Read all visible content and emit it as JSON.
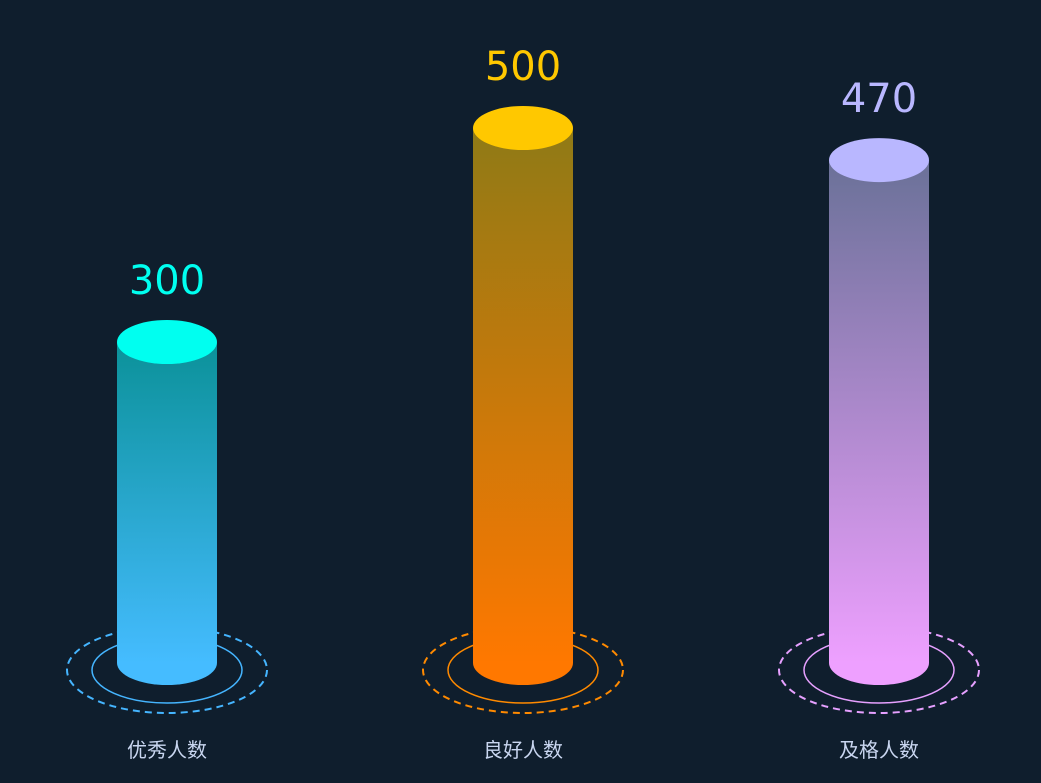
{
  "chart_data": {
    "type": "bar",
    "categories": [
      "优秀人数",
      "良好人数",
      "及格人数"
    ],
    "values": [
      300,
      500,
      470
    ],
    "value_labels": [
      "300",
      "500",
      "470"
    ],
    "ylim": [
      0,
      500
    ],
    "grid": false,
    "colors": {
      "background": "#0f1e2d",
      "bars": [
        {
          "top": "#00fff0",
          "body_top": "#0b9199",
          "body_bottom": "#45bcff",
          "ring": "#45b5ff",
          "label": "#00fff0"
        },
        {
          "top": "#ffc800",
          "body_top": "#8f7a16",
          "body_bottom": "#ff7800",
          "ring": "#ff8a00",
          "label": "#ffc800"
        },
        {
          "top": "#b9b7ff",
          "body_top": "#6a7198",
          "body_bottom": "#eea0ff",
          "ring": "#e6a0ff",
          "label": "#b9b7ff"
        }
      ],
      "category_label": "#c9d6f0"
    }
  }
}
